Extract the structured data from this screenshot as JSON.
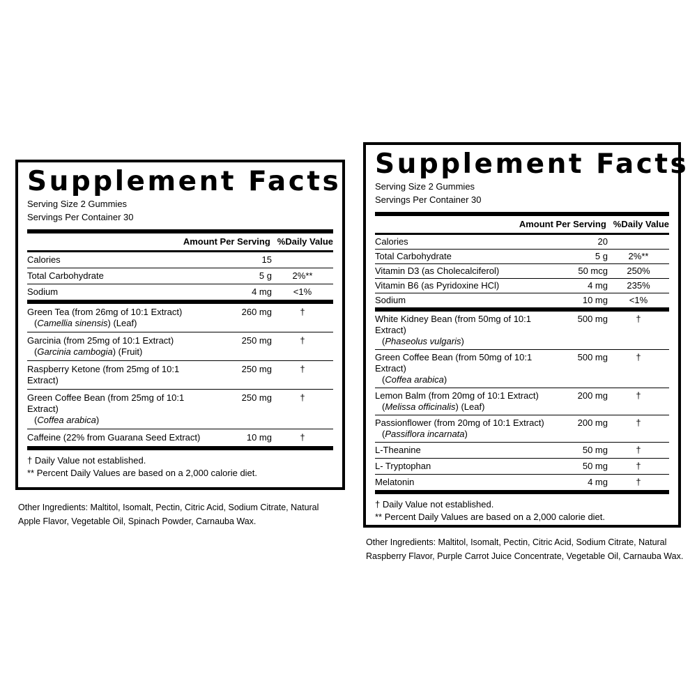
{
  "panels": [
    {
      "title": "Supplement Facts",
      "serving_size": "Serving Size 2 Gummies",
      "servings_per_container": "Servings Per Container 30",
      "header": {
        "amount": "Amount Per Serving",
        "daily_value": "%Daily Value"
      },
      "nutrients": [
        {
          "name": "Calories",
          "amount": "15"
        },
        {
          "name": "Total Carbohydrate",
          "amount": "5 g",
          "dv": "2%**"
        },
        {
          "name": "Sodium",
          "amount": "4 mg",
          "dv": "<1%"
        }
      ],
      "ingredients": [
        {
          "name": "Green Tea (from 26mg of 10:1 Extract)",
          "sub": [
            "(",
            "Camellia sinensis",
            ") (Leaf)"
          ],
          "amount": "260 mg",
          "dv": "†"
        },
        {
          "name": "Garcinia (from 25mg of 10:1 Extract)",
          "sub": [
            "(",
            "Garcinia cambogia",
            ") (Fruit)"
          ],
          "amount": "250 mg",
          "dv": "†"
        },
        {
          "name": "Raspberry Ketone (from 25mg of 10:1 Extract)",
          "amount": "250 mg",
          "dv": "†"
        },
        {
          "name": "Green Coffee Bean (from 25mg of 10:1 Extract)",
          "sub": [
            "(",
            "Coffea arabica",
            ")"
          ],
          "amount": "250 mg",
          "dv": "†"
        },
        {
          "name": "Caffeine (22% from Guarana Seed Extract)",
          "amount": "10 mg",
          "dv": "†"
        }
      ],
      "footnotes": [
        "† Daily Value not established.",
        "** Percent Daily Values are based on a 2,000 calorie diet."
      ],
      "other_ingredients": [
        "Other Ingredients: Maltitol, Isomalt, Pectin, Citric Acid, Sodium Citrate, Natural",
        "Apple Flavor, Vegetable Oil, Spinach Powder, Carnauba Wax."
      ]
    },
    {
      "title": "Supplement Facts",
      "serving_size": "Serving Size 2 Gummies",
      "servings_per_container": "Servings Per Container 30",
      "header": {
        "amount": "Amount Per Serving",
        "daily_value": "%Daily Value"
      },
      "nutrients": [
        {
          "name": "Calories",
          "amount": "20"
        },
        {
          "name": "Total Carbohydrate",
          "amount": "5 g",
          "dv": "2%**"
        },
        {
          "name": "Vitamin D3 (as Cholecalciferol)",
          "amount": "50 mcg",
          "dv": "250%"
        },
        {
          "name": "Vitamin B6 (as Pyridoxine HCl)",
          "amount": "4 mg",
          "dv": "235%"
        },
        {
          "name": "Sodium",
          "amount": "10 mg",
          "dv": "<1%"
        }
      ],
      "ingredients": [
        {
          "name": "White Kidney Bean (from 50mg of 10:1 Extract)",
          "sub": [
            "(",
            "Phaseolus vulgaris",
            ")"
          ],
          "amount": "500 mg",
          "dv": "†"
        },
        {
          "name": "Green Coffee Bean (from 50mg of 10:1 Extract)",
          "sub": [
            "(",
            "Coffea arabica",
            ")"
          ],
          "amount": "500 mg",
          "dv": "†"
        },
        {
          "name": "Lemon Balm (from 20mg of 10:1 Extract)",
          "sub": [
            "(",
            "Melissa officinalis",
            ") (Leaf)"
          ],
          "amount": "200 mg",
          "dv": "†"
        },
        {
          "name": "Passionflower (from 20mg of 10:1 Extract)",
          "sub": [
            "(",
            "Passiflora incarnata",
            ")"
          ],
          "amount": "200 mg",
          "dv": "†"
        },
        {
          "name": "L-Theanine",
          "amount": "50 mg",
          "dv": "†"
        },
        {
          "name": "L- Tryptophan",
          "amount": "50 mg",
          "dv": "†"
        },
        {
          "name": "Melatonin",
          "amount": "4 mg",
          "dv": "†"
        }
      ],
      "footnotes": [
        "† Daily Value not established.",
        "** Percent Daily Values are based on a 2,000 calorie diet."
      ],
      "other_ingredients": [
        "Other Ingredients: Maltitol, Isomalt, Pectin, Citric Acid, Sodium Citrate, Natural",
        "Raspberry Flavor, Purple Carrot Juice Concentrate, Vegetable Oil, Carnauba Wax."
      ]
    }
  ]
}
